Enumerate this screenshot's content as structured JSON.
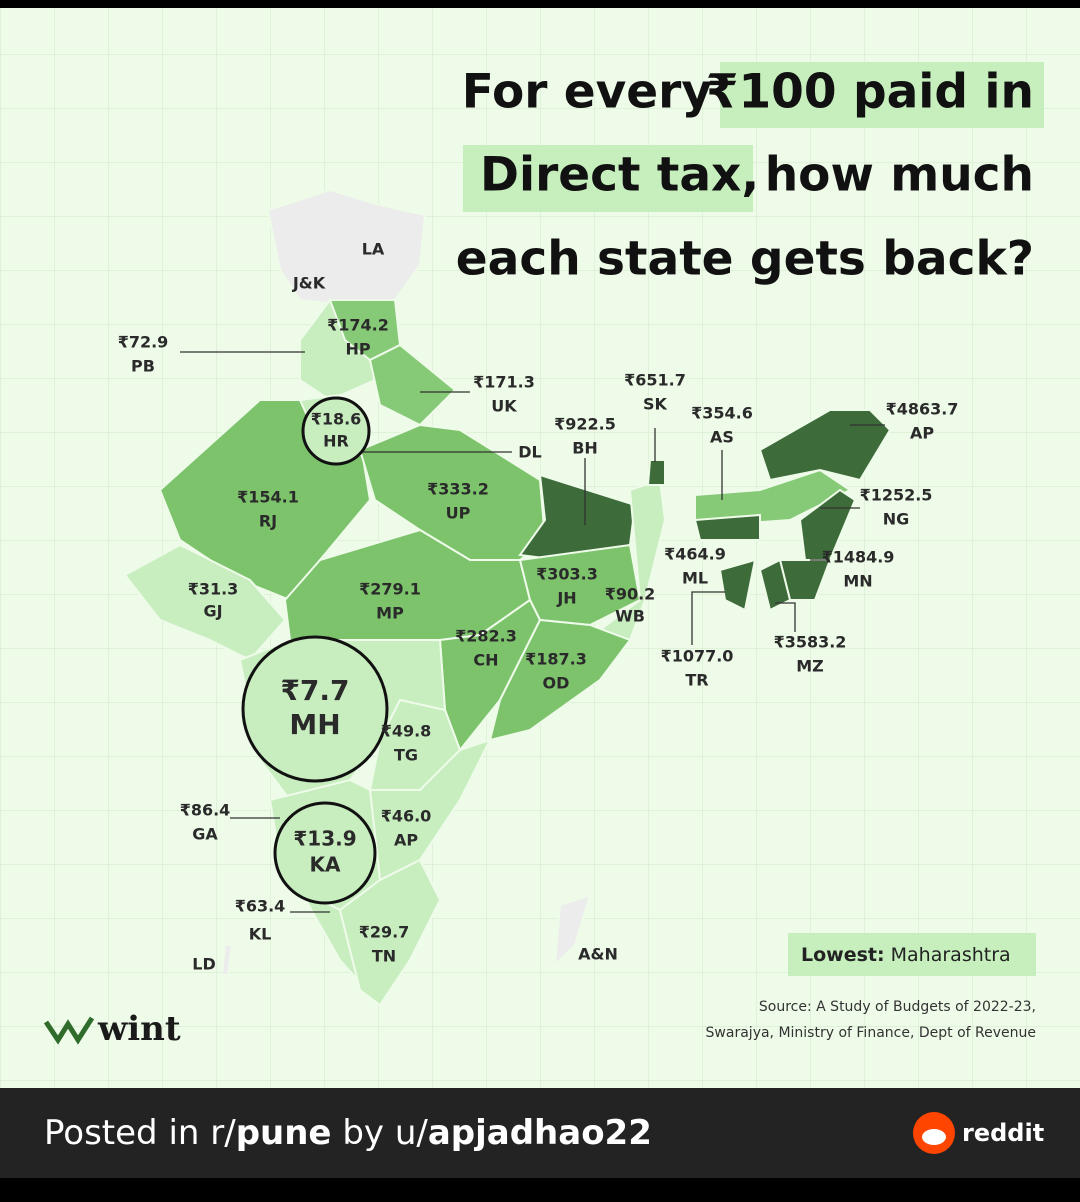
{
  "title": {
    "line1_plain": "For every",
    "line1_highlight": "₹100 paid in",
    "line2_highlight": "Direct tax,",
    "line2_plain": "how much",
    "line3": "each state gets back?"
  },
  "states": [
    {
      "value": "₹72.9",
      "code": "PB"
    },
    {
      "value": "₹174.2",
      "code": "HP"
    },
    {
      "value": "₹171.3",
      "code": "UK"
    },
    {
      "value": "₹154.1",
      "code": "RJ"
    },
    {
      "value": "₹18.6",
      "code": "HR"
    },
    {
      "value": "₹333.2",
      "code": "UP"
    },
    {
      "value": "₹922.5",
      "code": "BH"
    },
    {
      "value": "₹651.7",
      "code": "SK"
    },
    {
      "value": "₹354.6",
      "code": "AS"
    },
    {
      "value": "₹4863.7",
      "code": "AP"
    },
    {
      "value": "₹1252.5",
      "code": "NG"
    },
    {
      "value": "₹464.9",
      "code": "ML"
    },
    {
      "value": "₹1484.9",
      "code": "MN"
    },
    {
      "value": "₹3583.2",
      "code": "MZ"
    },
    {
      "value": "₹1077.0",
      "code": "TR"
    },
    {
      "value": "₹31.3",
      "code": "GJ"
    },
    {
      "value": "₹279.1",
      "code": "MP"
    },
    {
      "value": "₹303.3",
      "code": "JH"
    },
    {
      "value": "₹90.2",
      "code": "WB"
    },
    {
      "value": "₹282.3",
      "code": "CH"
    },
    {
      "value": "₹187.3",
      "code": "OD"
    },
    {
      "value": "₹7.7",
      "code": "MH"
    },
    {
      "value": "₹49.8",
      "code": "TG"
    },
    {
      "value": "₹86.4",
      "code": "GA"
    },
    {
      "value": "₹46.0",
      "code": "AP"
    },
    {
      "value": "₹13.9",
      "code": "KA"
    },
    {
      "value": "₹63.4",
      "code": "KL"
    },
    {
      "value": "₹29.7",
      "code": "TN"
    }
  ],
  "unlabeled_regions": [
    "LA",
    "J&K",
    "DL",
    "LD",
    "A&N"
  ],
  "lowest": {
    "label": "Lowest:",
    "state": "Maharashtra"
  },
  "source": [
    "Source: A Study of Budgets of 2022-23,",
    "Swarajya, Ministry of Finance, Dept of Revenue"
  ],
  "logo": "wint",
  "footer": {
    "prefix": "Posted in r/",
    "subreddit": "pune",
    "middle": "by u/",
    "user": "apjadhao22",
    "brand": "reddit"
  }
}
